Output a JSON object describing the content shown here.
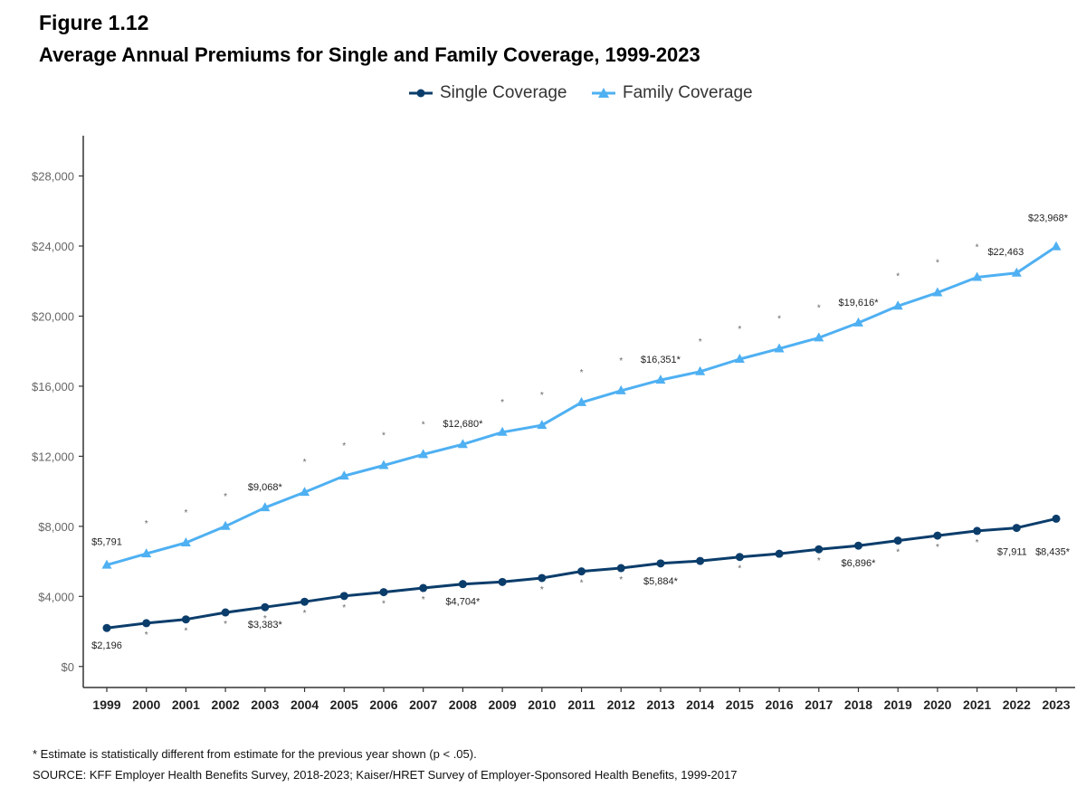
{
  "figure_label": "Figure 1.12",
  "title": "Average Annual Premiums for Single and Family Coverage, 1999-2023",
  "legend": [
    {
      "name": "Single Coverage",
      "color": "#0b3d6b",
      "marker": "circle"
    },
    {
      "name": "Family Coverage",
      "color": "#4fb0f2",
      "marker": "triangle"
    }
  ],
  "chart_data": {
    "type": "line",
    "x": [
      1999,
      2000,
      2001,
      2002,
      2003,
      2004,
      2005,
      2006,
      2007,
      2008,
      2009,
      2010,
      2011,
      2012,
      2013,
      2014,
      2015,
      2016,
      2017,
      2018,
      2019,
      2020,
      2021,
      2022,
      2023
    ],
    "x_tick_labels": [
      "1999",
      "2000",
      "2001",
      "2002",
      "2003",
      "2004",
      "2005",
      "2006",
      "2007",
      "2008",
      "2009",
      "2010",
      "2011",
      "2012",
      "2013",
      "2014",
      "2015",
      "2016",
      "2017",
      "2018",
      "2019",
      "2020",
      "2021",
      "2022",
      "2023"
    ],
    "y_ticks": [
      0,
      4000,
      8000,
      12000,
      16000,
      20000,
      24000,
      28000
    ],
    "y_tick_labels": [
      "$0",
      "$4,000",
      "$8,000",
      "$12,000",
      "$16,000",
      "$20,000",
      "$24,000",
      "$28,000"
    ],
    "ylim": [
      -1200,
      30300
    ],
    "grid": false,
    "legend_position": "top-center",
    "series": [
      {
        "name": "Single Coverage",
        "color": "#0b3d6b",
        "marker": "circle",
        "values": [
          2196,
          2471,
          2689,
          3083,
          3383,
          3695,
          4024,
          4242,
          4479,
          4704,
          4824,
          5049,
          5429,
          5615,
          5884,
          6025,
          6251,
          6435,
          6690,
          6896,
          7188,
          7470,
          7739,
          7911,
          8435
        ],
        "significant": [
          false,
          true,
          true,
          true,
          true,
          true,
          true,
          true,
          true,
          false,
          false,
          true,
          true,
          true,
          false,
          false,
          true,
          false,
          true,
          false,
          true,
          true,
          true,
          false,
          false
        ],
        "data_labels": [
          {
            "year": 1999,
            "text": "$2,196"
          },
          {
            "year": 2003,
            "text": "$3,383*"
          },
          {
            "year": 2008,
            "text": "$4,704*"
          },
          {
            "year": 2013,
            "text": "$5,884*"
          },
          {
            "year": 2018,
            "text": "$6,896*"
          },
          {
            "year": 2022,
            "text": "$7,911"
          },
          {
            "year": 2023,
            "text": "$8,435*"
          }
        ]
      },
      {
        "name": "Family Coverage",
        "color": "#4fb0f2",
        "marker": "triangle",
        "values": [
          5791,
          6438,
          7061,
          8003,
          9068,
          9950,
          10880,
          11480,
          12106,
          12680,
          13375,
          13770,
          15073,
          15745,
          16351,
          16834,
          17545,
          18142,
          18764,
          19616,
          20576,
          21342,
          22221,
          22463,
          23968
        ],
        "significant": [
          false,
          true,
          true,
          true,
          false,
          true,
          true,
          true,
          true,
          false,
          true,
          true,
          true,
          true,
          false,
          true,
          true,
          true,
          true,
          false,
          true,
          true,
          true,
          false,
          false
        ],
        "data_labels": [
          {
            "year": 1999,
            "text": "$5,791"
          },
          {
            "year": 2003,
            "text": "$9,068*"
          },
          {
            "year": 2008,
            "text": "$12,680*"
          },
          {
            "year": 2013,
            "text": "$16,351*"
          },
          {
            "year": 2018,
            "text": "$19,616*"
          },
          {
            "year": 2022,
            "text": "$22,463"
          },
          {
            "year": 2023,
            "text": "$23,968*"
          }
        ]
      }
    ],
    "significance_marker": "*"
  },
  "footnote": "* Estimate is statistically different from estimate for the previous year shown (p < .05).",
  "source": "SOURCE: KFF Employer Health Benefits Survey, 2018-2023; Kaiser/HRET Survey of Employer-Sponsored Health Benefits, 1999-2017"
}
